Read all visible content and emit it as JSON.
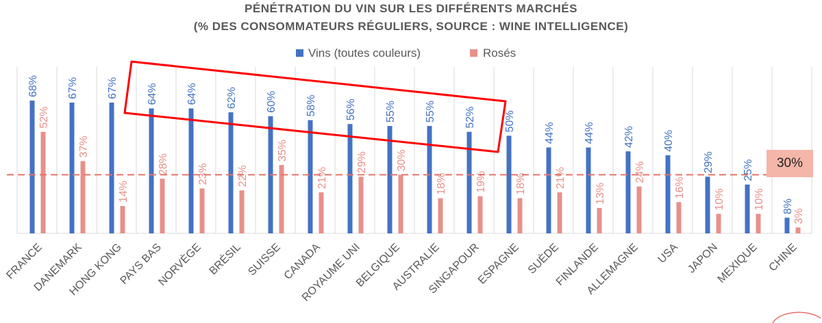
{
  "chart_data": {
    "type": "bar",
    "title": "PÉNÉTRATION DU VIN SUR LES DIFFÉRENTS MARCHÉS",
    "subtitle": "(% DES CONSOMMATEURS RÉGULIERS, SOURCE : WINE INTELLIGENCE)",
    "categories": [
      "FRANCE",
      "DANEMARK",
      "HONG KONG",
      "PAYS BAS",
      "NORVÈGE",
      "BRÉSIL",
      "SUISSE",
      "CANADA",
      "ROYAUME UNI",
      "BELGIQUE",
      "AUSTRALIE",
      "SINGAPOUR",
      "ESPAGNE",
      "SUÈDE",
      "FINLANDE",
      "ALLEMAGNE",
      "USA",
      "JAPON",
      "MEXIQUE",
      "CHINE"
    ],
    "series": [
      {
        "name": "Vins (toutes couleurs)",
        "color": "#4472c4",
        "values": [
          68,
          67,
          67,
          64,
          64,
          62,
          60,
          58,
          56,
          55,
          55,
          52,
          50,
          44,
          44,
          42,
          40,
          29,
          25,
          8
        ],
        "labels": [
          "68%",
          "67%",
          "67%",
          "64%",
          "64%",
          "62%",
          "60%",
          "58%",
          "56%",
          "55%",
          "55%",
          "52%",
          "50%",
          "44%",
          "44%",
          "42%",
          "40%",
          "29%",
          "25%",
          "8%"
        ]
      },
      {
        "name": "Rosés",
        "color": "#e8908a",
        "values": [
          52,
          37,
          14,
          28,
          23,
          22,
          35,
          21,
          29,
          30,
          18,
          19,
          18,
          21,
          13,
          24,
          16,
          10,
          10,
          3
        ],
        "labels": [
          "52%",
          "37%",
          "14%",
          "28%",
          "23%",
          "22%",
          "35%",
          "21%",
          "29%",
          "30%",
          "18%",
          "19%",
          "18%",
          "21%",
          "13%",
          "24%",
          "16%",
          "10%",
          "10%",
          "3%"
        ]
      }
    ],
    "reference_line": {
      "value": 30,
      "label": "30%",
      "color": "#e57368",
      "style": "dashed"
    },
    "highlight": {
      "from": "PAYS BAS",
      "to": "SINGAPOUR",
      "color": "#ff0000"
    },
    "ylim": [
      0,
      80
    ],
    "legend": "top-center",
    "grid": "vertical category separators"
  }
}
